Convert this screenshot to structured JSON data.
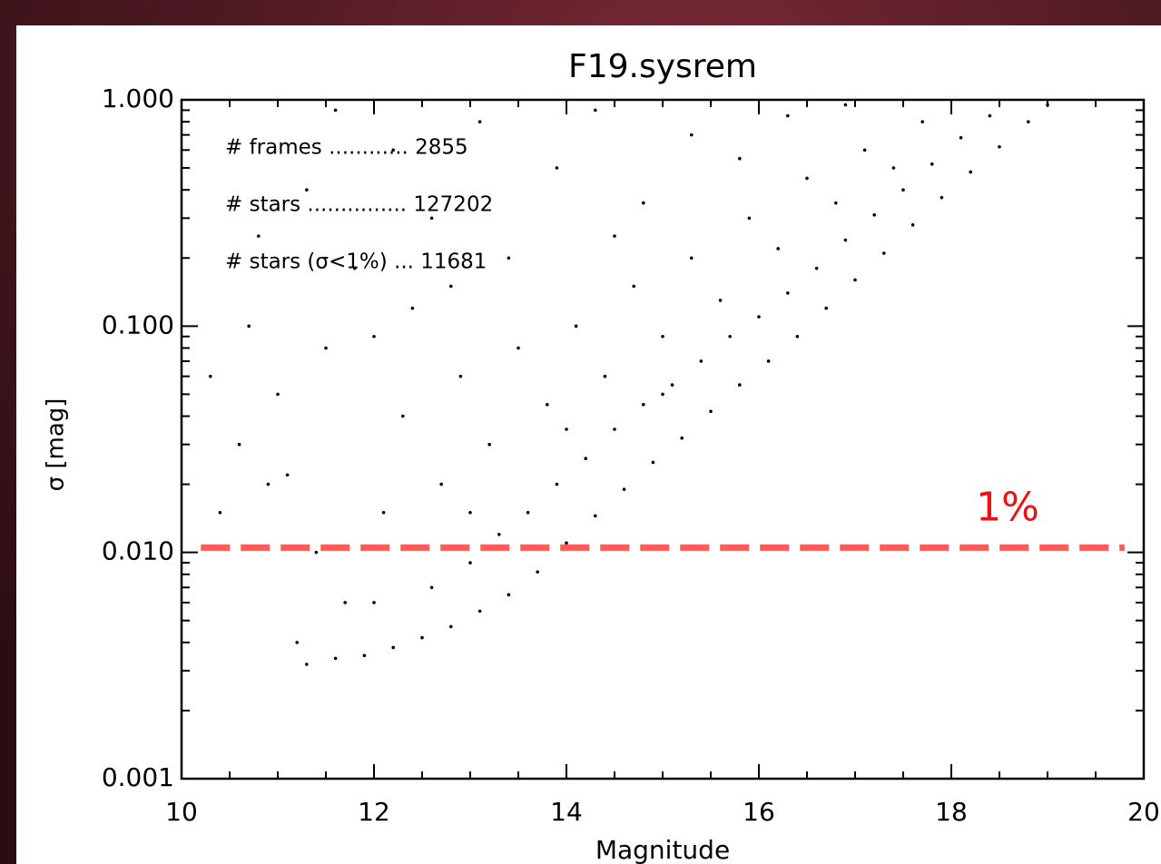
{
  "chart_data": {
    "type": "scatter",
    "title": "F19.sysrem",
    "x_label": "Magnitude",
    "y_label": "σ   [mag]",
    "ylog": true,
    "color": "#000000",
    "xlim": [
      10,
      20
    ],
    "xticks": [
      10,
      12,
      14,
      16,
      18,
      20
    ],
    "xminorticks": [
      10.5,
      11,
      11.5,
      12.5,
      13,
      13.5,
      14.5,
      15,
      15.5,
      16.5,
      17,
      17.5,
      18.5,
      19,
      19.5
    ],
    "ylim": [
      0.001,
      1
    ],
    "yticks": [
      {
        "value": 0.001,
        "label": "0.001"
      },
      {
        "value": 0.01,
        "label": "0.010"
      },
      {
        "value": 0.1,
        "label": "0.100"
      },
      {
        "value": 1,
        "label": "1.000"
      }
    ],
    "yminorticks": [
      0.002,
      0.003,
      0.004,
      0.005,
      0.006,
      0.007,
      0.008,
      0.009,
      0.02,
      0.03,
      0.04,
      0.05,
      0.06,
      0.07,
      0.08,
      0.09,
      0.2,
      0.3,
      0.4,
      0.5,
      0.6,
      0.7,
      0.8,
      0.9
    ],
    "annotations": [
      "# frames ............ 2855",
      "# stars ............... 127202",
      "# stars (σ<1%) ... 11681"
    ],
    "reference_line": {
      "y": 0.0105,
      "x": [
        10.2,
        19.8
      ],
      "color": "#ff5a5a",
      "label": "1%",
      "label_color": "#ee1111"
    },
    "x": [
      11.3,
      11.6,
      11.9,
      12.2,
      12.5,
      12.8,
      13.1,
      13.4,
      13.7,
      14.0,
      14.3,
      14.6,
      14.9,
      15.2,
      15.5,
      15.8,
      16.1,
      16.4,
      16.7,
      17.0,
      17.3,
      17.6,
      17.9,
      18.2,
      18.5,
      18.8,
      19.0,
      12.0,
      12.6,
      13.0,
      13.3,
      13.6,
      13.9,
      14.2,
      14.5,
      14.8,
      15.1,
      15.4,
      15.7,
      16.0,
      16.3,
      16.6,
      16.9,
      17.2,
      17.5,
      17.8,
      18.1,
      18.4,
      10.6,
      10.9,
      11.1,
      11.0,
      11.4,
      11.5,
      11.7,
      12.1,
      12.3,
      12.4,
      12.7,
      12.9,
      13.2,
      13.5,
      13.8,
      14.1,
      14.4,
      14.7,
      15.0,
      15.3,
      15.6,
      15.9,
      16.2,
      16.5,
      16.8,
      17.1,
      17.4,
      17.7,
      10.4,
      11.2,
      13.0,
      14.0,
      15.0,
      10.8,
      11.3,
      11.8,
      12.2,
      12.6,
      13.1,
      13.4,
      13.9,
      14.3,
      14.8,
      15.3,
      15.8,
      16.3,
      16.9,
      12.0,
      10.3,
      10.7,
      11.6,
      12.8,
      14.5
    ],
    "y": [
      0.0032,
      0.0034,
      0.0035,
      0.0038,
      0.0042,
      0.0047,
      0.0055,
      0.0065,
      0.0082,
      0.011,
      0.0145,
      0.019,
      0.025,
      0.032,
      0.042,
      0.055,
      0.07,
      0.09,
      0.12,
      0.16,
      0.21,
      0.28,
      0.37,
      0.48,
      0.62,
      0.8,
      0.95,
      0.006,
      0.007,
      0.009,
      0.012,
      0.015,
      0.02,
      0.026,
      0.035,
      0.045,
      0.055,
      0.07,
      0.09,
      0.11,
      0.14,
      0.18,
      0.24,
      0.31,
      0.4,
      0.52,
      0.68,
      0.85,
      0.03,
      0.02,
      0.022,
      0.05,
      0.01,
      0.08,
      0.006,
      0.015,
      0.04,
      0.12,
      0.02,
      0.06,
      0.03,
      0.08,
      0.045,
      0.1,
      0.06,
      0.15,
      0.09,
      0.2,
      0.13,
      0.3,
      0.22,
      0.45,
      0.35,
      0.6,
      0.5,
      0.8,
      0.015,
      0.004,
      0.015,
      0.035,
      0.05,
      0.25,
      0.4,
      0.18,
      0.6,
      0.3,
      0.8,
      0.2,
      0.5,
      0.9,
      0.35,
      0.7,
      0.55,
      0.85,
      0.95,
      0.09,
      0.06,
      0.1,
      0.9,
      0.15,
      0.25
    ]
  }
}
